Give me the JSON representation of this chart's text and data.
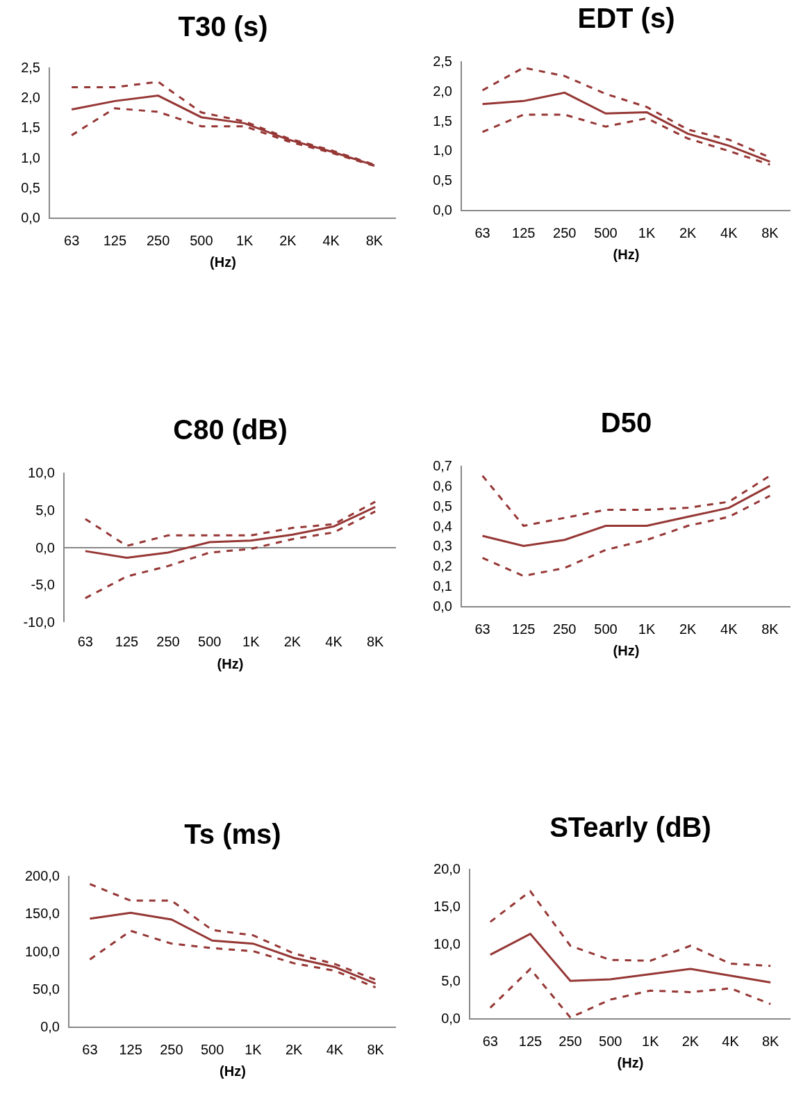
{
  "chart_data": [
    {
      "type": "line",
      "title": "T30 (s)",
      "xlabel": "(Hz)",
      "categories": [
        "63",
        "125",
        "250",
        "500",
        "1K",
        "2K",
        "4K",
        "8K"
      ],
      "ylim": [
        0,
        2.5
      ],
      "yticks": [
        {
          "value": 0,
          "label": "0,0"
        },
        {
          "value": 0.5,
          "label": "0,5"
        },
        {
          "value": 1,
          "label": "1,0"
        },
        {
          "value": 1.5,
          "label": "1,5"
        },
        {
          "value": 2,
          "label": "2,0"
        },
        {
          "value": 2.5,
          "label": "2,5"
        }
      ],
      "series": [
        {
          "color": "#953735",
          "line_style": "dashed",
          "values": [
            2.17,
            2.17,
            2.26,
            1.75,
            1.6,
            1.32,
            1.12,
            0.88
          ]
        },
        {
          "color": "#953735",
          "line_style": "solid",
          "values": [
            1.8,
            1.94,
            2.03,
            1.67,
            1.57,
            1.3,
            1.1,
            0.87
          ]
        },
        {
          "color": "#953735",
          "line_style": "dashed",
          "values": [
            1.37,
            1.82,
            1.76,
            1.52,
            1.52,
            1.27,
            1.08,
            0.86
          ]
        }
      ]
    },
    {
      "type": "line",
      "title": "EDT (s)",
      "xlabel": "(Hz)",
      "categories": [
        "63",
        "125",
        "250",
        "500",
        "1K",
        "2K",
        "4K",
        "8K"
      ],
      "ylim": [
        0,
        2.5
      ],
      "yticks": [
        {
          "value": 0,
          "label": "0,0"
        },
        {
          "value": 0.5,
          "label": "0,5"
        },
        {
          "value": 1,
          "label": "1,0"
        },
        {
          "value": 1.5,
          "label": "1,5"
        },
        {
          "value": 2,
          "label": "2,0"
        },
        {
          "value": 2.5,
          "label": "2,5"
        }
      ],
      "series": [
        {
          "color": "#953735",
          "line_style": "dashed",
          "values": [
            2.01,
            2.39,
            2.25,
            1.95,
            1.73,
            1.35,
            1.18,
            0.88
          ]
        },
        {
          "color": "#953735",
          "line_style": "solid",
          "values": [
            1.78,
            1.83,
            1.97,
            1.62,
            1.64,
            1.28,
            1.08,
            0.81
          ]
        },
        {
          "color": "#953735",
          "line_style": "dashed",
          "values": [
            1.31,
            1.6,
            1.6,
            1.4,
            1.54,
            1.2,
            0.99,
            0.76
          ]
        }
      ]
    },
    {
      "type": "line",
      "title": "C80 (dB)",
      "xlabel": "(Hz)",
      "categories": [
        "63",
        "125",
        "250",
        "500",
        "1K",
        "2K",
        "4K",
        "8K"
      ],
      "ylim": [
        -10,
        10
      ],
      "yticks": [
        {
          "value": -10,
          "label": "-10,0"
        },
        {
          "value": -5,
          "label": "-5,0"
        },
        {
          "value": 0,
          "label": "0,0"
        },
        {
          "value": 5,
          "label": "5,0"
        },
        {
          "value": 10,
          "label": "10,0"
        }
      ],
      "series": [
        {
          "color": "#953735",
          "line_style": "dashed",
          "values": [
            3.8,
            0.2,
            1.6,
            1.6,
            1.6,
            2.6,
            3.1,
            6.1
          ]
        },
        {
          "color": "#953735",
          "line_style": "solid",
          "values": [
            -0.5,
            -1.4,
            -0.7,
            0.7,
            0.9,
            1.7,
            2.8,
            5.4
          ]
        },
        {
          "color": "#953735",
          "line_style": "dashed",
          "values": [
            -6.8,
            -3.9,
            -2.5,
            -0.7,
            -0.2,
            1.1,
            2.0,
            4.8
          ]
        }
      ]
    },
    {
      "type": "line",
      "title": "D50",
      "xlabel": "(Hz)",
      "categories": [
        "63",
        "125",
        "250",
        "500",
        "1K",
        "2K",
        "4K",
        "8K"
      ],
      "ylim": [
        0,
        0.7
      ],
      "yticks": [
        {
          "value": 0,
          "label": "0,0"
        },
        {
          "value": 0.1,
          "label": "0,1"
        },
        {
          "value": 0.2,
          "label": "0,2"
        },
        {
          "value": 0.3,
          "label": "0,3"
        },
        {
          "value": 0.4,
          "label": "0,4"
        },
        {
          "value": 0.5,
          "label": "0,5"
        },
        {
          "value": 0.6,
          "label": "0,6"
        },
        {
          "value": 0.7,
          "label": "0,7"
        }
      ],
      "series": [
        {
          "color": "#953735",
          "line_style": "dashed",
          "values": [
            0.65,
            0.4,
            0.44,
            0.48,
            0.48,
            0.49,
            0.52,
            0.65
          ]
        },
        {
          "color": "#953735",
          "line_style": "solid",
          "values": [
            0.35,
            0.3,
            0.33,
            0.4,
            0.4,
            0.445,
            0.49,
            0.6
          ]
        },
        {
          "color": "#953735",
          "line_style": "dashed",
          "values": [
            0.24,
            0.15,
            0.19,
            0.28,
            0.33,
            0.4,
            0.445,
            0.55
          ]
        }
      ]
    },
    {
      "type": "line",
      "title": "Ts (ms)",
      "xlabel": "(Hz)",
      "categories": [
        "63",
        "125",
        "250",
        "500",
        "1K",
        "2K",
        "4K",
        "8K"
      ],
      "ylim": [
        0,
        200
      ],
      "yticks": [
        {
          "value": 0,
          "label": "0,0"
        },
        {
          "value": 50,
          "label": "50,0"
        },
        {
          "value": 100,
          "label": "100,0"
        },
        {
          "value": 150,
          "label": "150,0"
        },
        {
          "value": 200,
          "label": "200,0"
        }
      ],
      "series": [
        {
          "color": "#953735",
          "line_style": "dashed",
          "values": [
            189,
            167,
            167,
            128,
            121,
            97,
            83,
            62
          ]
        },
        {
          "color": "#953735",
          "line_style": "solid",
          "values": [
            143,
            151,
            142,
            114,
            110,
            91,
            79,
            57
          ]
        },
        {
          "color": "#953735",
          "line_style": "dashed",
          "values": [
            89,
            127,
            110,
            104,
            100,
            84,
            74,
            52
          ]
        }
      ]
    },
    {
      "type": "line",
      "title": "STearly (dB)",
      "xlabel": "(Hz)",
      "categories": [
        "63",
        "125",
        "250",
        "500",
        "1K",
        "2K",
        "4K",
        "8K"
      ],
      "ylim": [
        0,
        20
      ],
      "yticks": [
        {
          "value": 0,
          "label": "0,0"
        },
        {
          "value": 5,
          "label": "5,0"
        },
        {
          "value": 10,
          "label": "10,0"
        },
        {
          "value": 15,
          "label": "15,0"
        },
        {
          "value": 20,
          "label": "20,0"
        }
      ],
      "series": [
        {
          "color": "#953735",
          "line_style": "dashed",
          "values": [
            12.9,
            17.0,
            9.7,
            7.8,
            7.7,
            9.7,
            7.3,
            7.0
          ]
        },
        {
          "color": "#953735",
          "line_style": "solid",
          "values": [
            8.5,
            11.3,
            5.0,
            5.2,
            5.9,
            6.6,
            5.7,
            4.8
          ]
        },
        {
          "color": "#953735",
          "line_style": "dashed",
          "values": [
            1.4,
            6.6,
            0.1,
            2.5,
            3.7,
            3.5,
            4.0,
            1.9
          ]
        }
      ]
    }
  ]
}
